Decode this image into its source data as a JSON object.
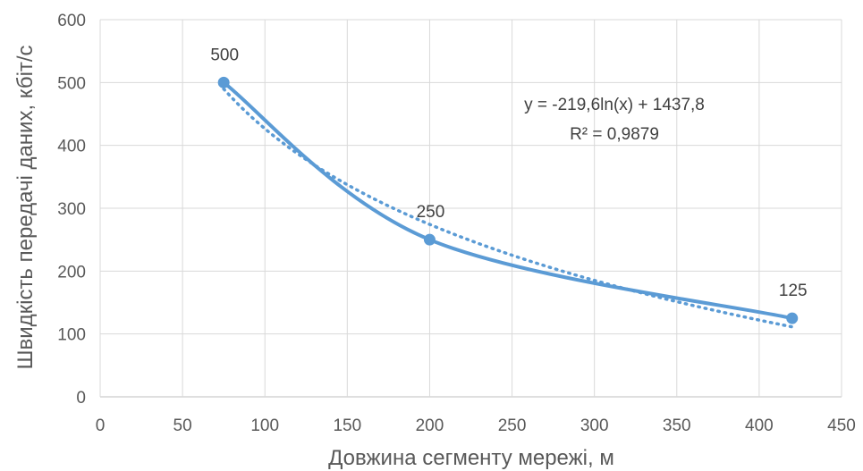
{
  "chart_data": {
    "type": "scatter",
    "title": "",
    "xlabel": "Довжина сегменту мережі, м",
    "ylabel": "Швидкість передачі даних, кбіт/с",
    "xlim": [
      0,
      450
    ],
    "ylim": [
      0,
      600
    ],
    "xticks": [
      0,
      50,
      100,
      150,
      200,
      250,
      300,
      350,
      400,
      450
    ],
    "yticks": [
      0,
      100,
      200,
      300,
      400,
      500,
      600
    ],
    "grid": true,
    "legend": "none",
    "series": [
      {
        "x": [
          75,
          200,
          420
        ],
        "y": [
          500,
          250,
          125
        ],
        "labels": [
          "500",
          "250",
          "125"
        ],
        "style": "smooth line with markers",
        "color": "#5B9BD5"
      }
    ],
    "trendline": {
      "type": "logarithmic",
      "a": -219.6,
      "b": 1437.8,
      "style": "dotted",
      "color": "#5B9BD5",
      "equation": "y = -219,6ln(x) + 1437,8",
      "r_squared": "R² = 0,9879"
    }
  }
}
